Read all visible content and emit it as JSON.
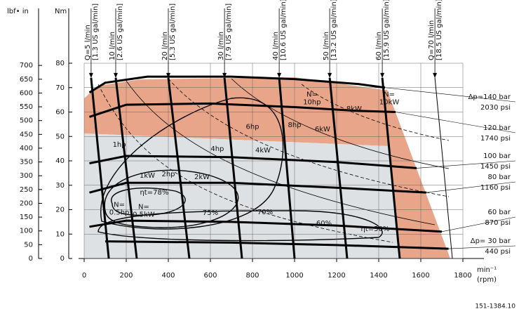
{
  "chart_data": {
    "type": "performance-map",
    "y_label": "Nm",
    "y2_label": "lbf• in",
    "x_label": "min⁻¹",
    "x_unit": "(rpm)",
    "code": "151-1384.10",
    "xlim": [
      0,
      1800
    ],
    "xticks": [
      0,
      200,
      400,
      600,
      800,
      1000,
      1200,
      1400,
      1600,
      1800
    ],
    "ylim": [
      0,
      80
    ],
    "yticks": [
      0,
      10,
      20,
      30,
      40,
      50,
      60,
      70,
      80
    ],
    "y2lim": [
      0,
      708
    ],
    "y2ticks": [
      0,
      50,
      100,
      150,
      200,
      250,
      300,
      350,
      400,
      450,
      500,
      550,
      600,
      650,
      700
    ],
    "grid": true,
    "series": [
      {
        "name": "Δp=140 bar",
        "psi": "2030 psi",
        "color": "#000000",
        "x": [
          25,
          100,
          300,
          700,
          1000,
          1300,
          1430
        ],
        "values": [
          68,
          72,
          74.5,
          74.5,
          73.5,
          71.5,
          70
        ]
      },
      {
        "name": "120 bar",
        "psi": "1740 psi",
        "color": "#000000",
        "x": [
          25,
          200,
          600,
          1000,
          1300,
          1480
        ],
        "values": [
          58,
          63,
          63.5,
          62,
          60.5,
          60
        ]
      },
      {
        "name": "100 bar",
        "psi": "1450 psi",
        "color": "#000000",
        "x": [
          25,
          200,
          700,
          1200,
          1580
        ],
        "values": [
          39,
          42,
          41.5,
          39.5,
          37
        ]
      },
      {
        "name": "80 bar",
        "psi": "1160 psi",
        "color": "#000000",
        "x": [
          25,
          200,
          700,
          1200,
          1626
        ],
        "values": [
          27,
          31,
          31,
          29,
          27
        ]
      },
      {
        "name": "60 bar",
        "psi": "870 psi",
        "color": "#000000",
        "x": [
          25,
          200,
          700,
          1200,
          1700
        ],
        "values": [
          13,
          15.5,
          15,
          13.5,
          11
        ]
      },
      {
        "name": "Δp= 30 bar",
        "psi": "440 psi",
        "color": "#000000",
        "x": [
          100,
          700,
          1200,
          1732
        ],
        "values": [
          7,
          6.5,
          5.5,
          4
        ]
      }
    ],
    "flows": [
      {
        "name": "Q=5 l/min",
        "us": "[1.3 US gal/min]",
        "x": [
          33,
          117
        ],
        "values": [
          74,
          0
        ]
      },
      {
        "name": "10 l/min",
        "us": "[2.6 US gal/min]",
        "x": [
          150,
          250
        ],
        "values": [
          74,
          0
        ]
      },
      {
        "name": "20 l/min",
        "us": "[5.3 US gal/min]",
        "x": [
          400,
          500
        ],
        "values": [
          74,
          0
        ]
      },
      {
        "name": "30 l/min",
        "us": "[7.9 US gal/min]",
        "x": [
          667,
          750
        ],
        "values": [
          74,
          0
        ]
      },
      {
        "name": "40 l/min",
        "us": "[10.6 US gal/min]",
        "x": [
          927,
          1000
        ],
        "values": [
          74,
          0
        ]
      },
      {
        "name": "50 l/min",
        "us": "[13.2 US gal/min]",
        "x": [
          1167,
          1250
        ],
        "values": [
          74,
          0
        ]
      },
      {
        "name": "60 l/min",
        "us": "[15.9 US gal/min]",
        "x": [
          1417,
          1500
        ],
        "values": [
          74,
          0
        ]
      },
      {
        "name": "Q=70 l/min",
        "us": "[18.5 US gal/min]",
        "x": [
          1667,
          1750
        ],
        "values": [
          74,
          0
        ]
      }
    ],
    "annotations": [
      {
        "lines": [
          "N=",
          "10hp"
        ],
        "x": 1083,
        "y": 65.6
      },
      {
        "lines": [
          "8kW"
        ],
        "x": 1283,
        "y": 61.3
      },
      {
        "lines": [
          "N=",
          "10kW"
        ],
        "x": 1450,
        "y": 65.6
      },
      {
        "lines": [
          "6hp"
        ],
        "x": 800,
        "y": 54
      },
      {
        "lines": [
          "8hp"
        ],
        "x": 1000,
        "y": 54.7
      },
      {
        "lines": [
          "6kW"
        ],
        "x": 1133,
        "y": 53
      },
      {
        "lines": [
          "1hp"
        ],
        "x": 167,
        "y": 46.6
      },
      {
        "lines": [
          "4hp"
        ],
        "x": 633,
        "y": 44.9
      },
      {
        "lines": [
          "4kW"
        ],
        "x": 850,
        "y": 44.3
      },
      {
        "lines": [
          "1kW"
        ],
        "x": 300,
        "y": 34
      },
      {
        "lines": [
          "2hp"
        ],
        "x": 400,
        "y": 34.5
      },
      {
        "lines": [
          "2kW"
        ],
        "x": 560,
        "y": 33.4
      },
      {
        "lines": [
          "ηt=78%"
        ],
        "x": 333,
        "y": 27
      },
      {
        "lines": [
          "N=",
          "0.5hp"
        ],
        "x": 167,
        "y": 20.4
      },
      {
        "lines": [
          "N=",
          "0.5kW"
        ],
        "x": 283,
        "y": 19.6
      },
      {
        "lines": [
          "75%"
        ],
        "x": 600,
        "y": 18.7
      },
      {
        "lines": [
          "70%"
        ],
        "x": 860,
        "y": 19
      },
      {
        "lines": [
          "60%"
        ],
        "x": 1140,
        "y": 14.4
      },
      {
        "lines": [
          "ηt=50%"
        ],
        "x": 1383,
        "y": 12.1
      }
    ]
  }
}
